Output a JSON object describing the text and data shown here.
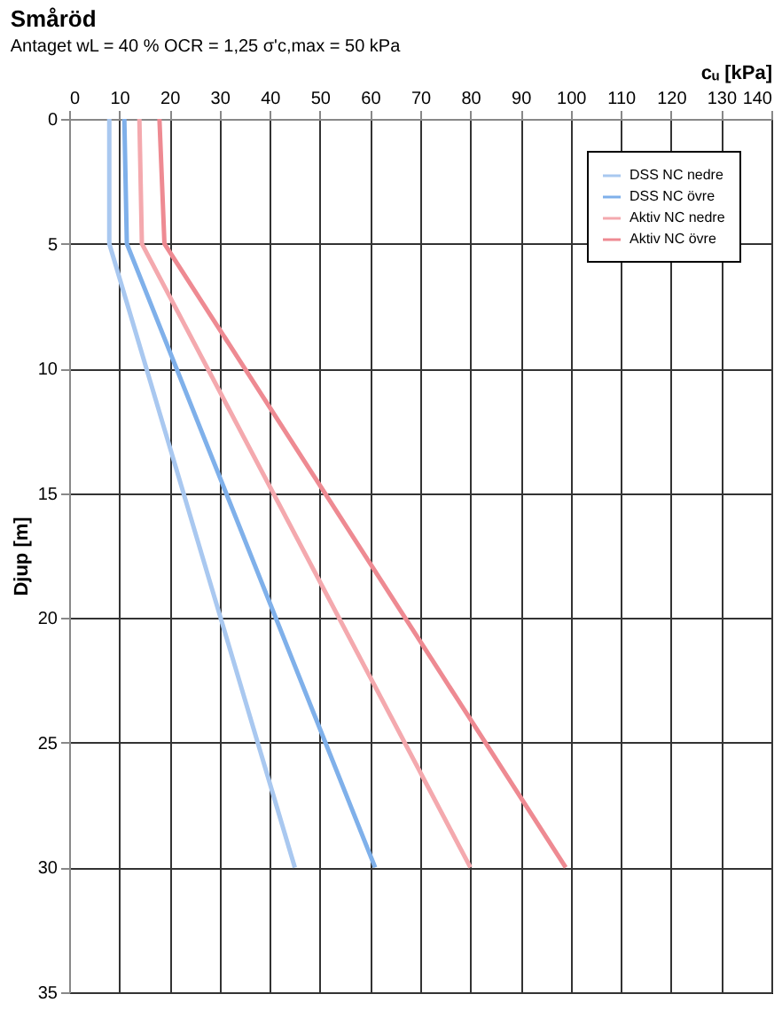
{
  "chart_data": {
    "type": "line",
    "title": "Småröd",
    "annotations": [
      "Antaget wL = 40 %",
      "OCR = 1,25",
      "σ'c,max = 50 kPa"
    ],
    "xlabel": "cᵤ [kPa]",
    "ylabel": "Djup [m]",
    "series": [
      {
        "name": "DSS NC nedre",
        "color": "#a9c8f0",
        "x": [
          8,
          8,
          45
        ],
        "values": [
          0,
          5,
          30
        ]
      },
      {
        "name": "DSS NC övre",
        "color": "#7fb0ea",
        "x": [
          11,
          11.5,
          61
        ],
        "values": [
          0,
          5,
          30
        ]
      },
      {
        "name": "Aktiv NC nedre",
        "color": "#f4a9ae",
        "x": [
          14,
          14.5,
          80
        ],
        "values": [
          0,
          5,
          30
        ]
      },
      {
        "name": "Aktiv NC övre",
        "color": "#ee8a92",
        "x": [
          18,
          19,
          99
        ],
        "values": [
          0,
          5,
          30
        ]
      }
    ],
    "xlim": [
      0,
      140
    ],
    "xticks": [
      0,
      10,
      20,
      30,
      40,
      50,
      60,
      70,
      80,
      90,
      100,
      110,
      120,
      130,
      140
    ],
    "ylim": [
      35,
      0
    ],
    "yticks": [
      0,
      5,
      10,
      15,
      20,
      25,
      30,
      35
    ],
    "grid": true,
    "legend": "top right",
    "marker": "none",
    "line_style": "solid"
  }
}
